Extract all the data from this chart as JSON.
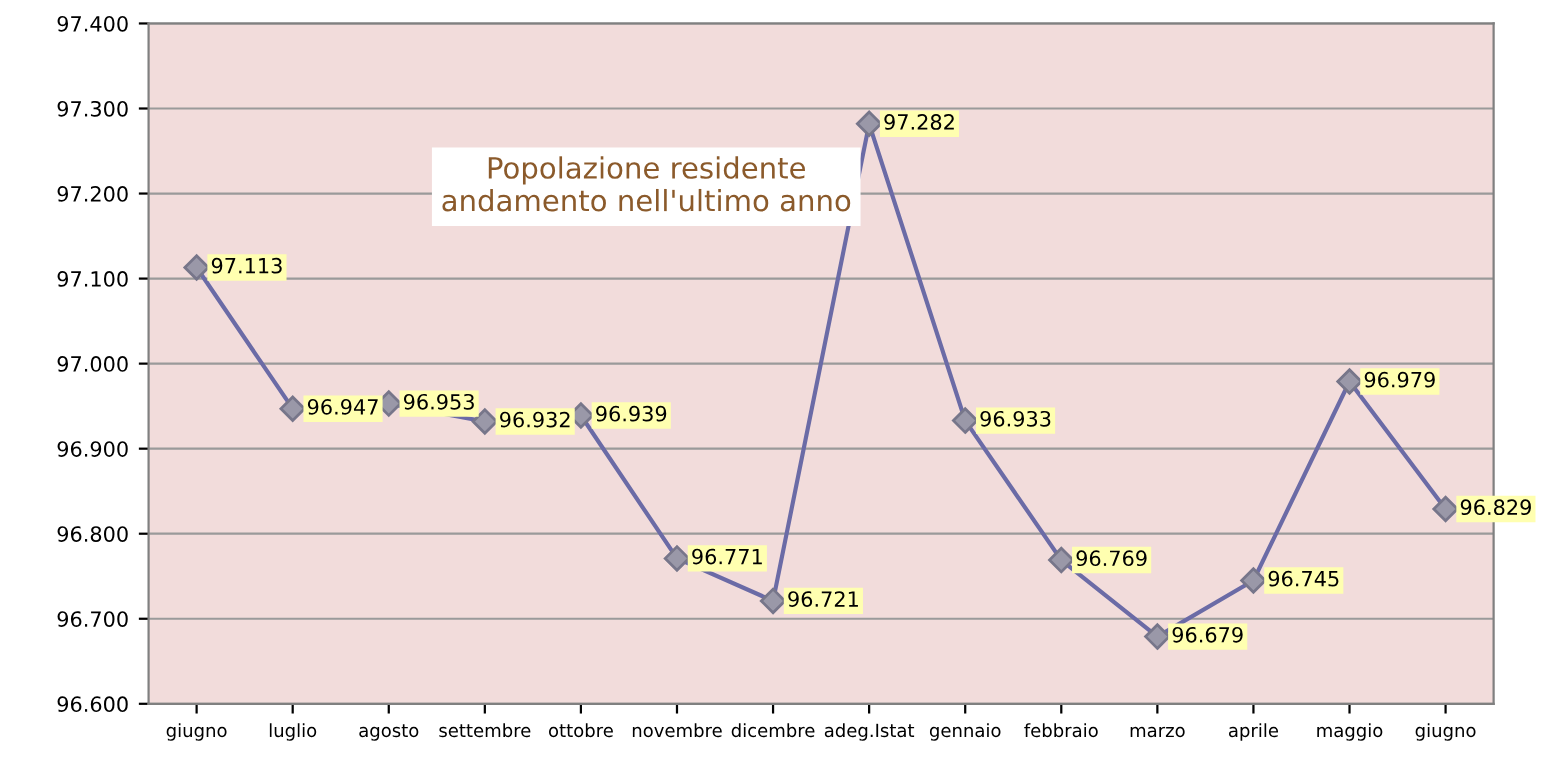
{
  "chart_data": {
    "type": "line",
    "title": "Popolazione residente\nandamento nell'ultimo anno",
    "categories": [
      "giugno",
      "luglio",
      "agosto",
      "settembre",
      "ottobre",
      "novembre",
      "dicembre",
      "adeg.Istat",
      "gennaio",
      "febbraio",
      "marzo",
      "aprile",
      "maggio",
      "giugno"
    ],
    "series": [
      {
        "color": "#6b6ba6",
        "values": [
          97113,
          96947,
          96953,
          96932,
          96939,
          96771,
          96721,
          97282,
          96933,
          96769,
          96679,
          96745,
          96979,
          96829
        ],
        "value_labels": [
          "97.113",
          "96.947",
          "96.953",
          "96.932",
          "96.939",
          "96.771",
          "96.721",
          "97.282",
          "96.933",
          "96.769",
          "96.679",
          "96.745",
          "96.979",
          "96.829"
        ]
      }
    ],
    "ylim": [
      96600,
      97400
    ],
    "yticks": [
      {
        "value": 96600,
        "label": "96.600"
      },
      {
        "value": 96700,
        "label": "96.700"
      },
      {
        "value": 96800,
        "label": "96.800"
      },
      {
        "value": 96900,
        "label": "96.900"
      },
      {
        "value": 97000,
        "label": "97.000"
      },
      {
        "value": 97100,
        "label": "97.100"
      },
      {
        "value": 97200,
        "label": "97.200"
      },
      {
        "value": 97300,
        "label": "97.300"
      },
      {
        "value": 97400,
        "label": "97.400"
      }
    ],
    "grid": "y",
    "marker": "diamond",
    "line_style": "solid"
  }
}
